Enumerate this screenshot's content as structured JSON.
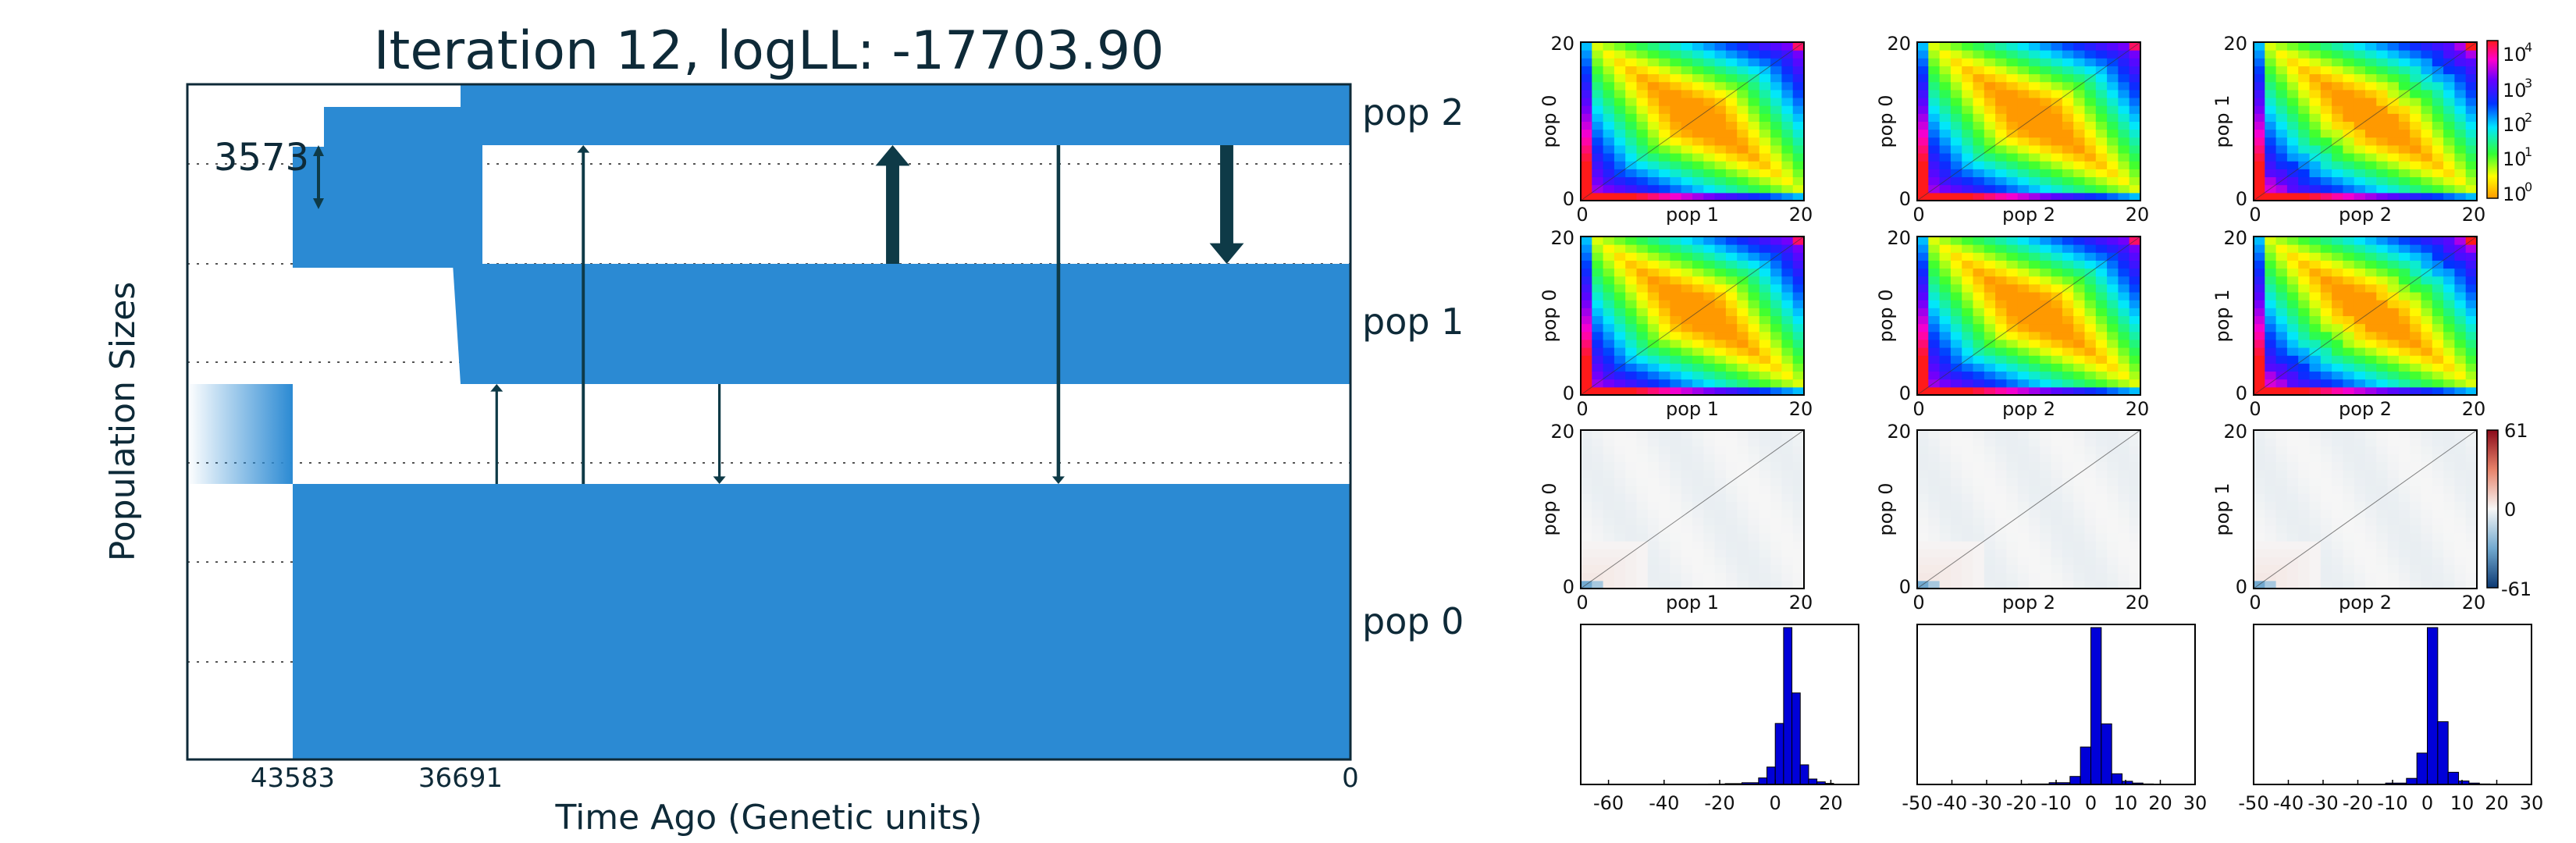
{
  "chart_data": [
    {
      "type": "demographic-model",
      "title": "Iteration 12, logLL:  -17703.90",
      "ylabel": "Population Sizes",
      "xlabel": "Time Ago (Genetic units)",
      "x_ticks": [
        "43583",
        "36691",
        "0"
      ],
      "x_range": [
        47000,
        0
      ],
      "size_scale_label": "3573",
      "populations": [
        {
          "name": "pop 2",
          "size_early": 1.6,
          "size_mid": 1.75,
          "size_recent": 1.05,
          "start_time": 43583
        },
        {
          "name": "pop 1",
          "size_early": 1.4,
          "size_recent": 1.45,
          "start_time": 43583
        },
        {
          "name": "pop 0",
          "size": 3.3,
          "ancestral_time": 43583
        }
      ],
      "migrations": [
        {
          "time": 34500,
          "from": "pop 0",
          "to": "pop 1",
          "rate": 0.25
        },
        {
          "time": 31000,
          "from": "pop 0",
          "to": "pop 2",
          "rate": 0.3
        },
        {
          "time": 25500,
          "from": "pop 1",
          "to": "pop 0",
          "rate": 0.25
        },
        {
          "time": 18500,
          "from": "pop 1",
          "to": "pop 2",
          "rate": 1.3
        },
        {
          "time": 11800,
          "from": "pop 2",
          "to": "pop 0",
          "rate": 0.35
        },
        {
          "time": 5000,
          "from": "pop 2",
          "to": "pop 1",
          "rate": 1.3
        }
      ],
      "colors": {
        "fill": "#2b8ad3",
        "arrow": "#0e3a47",
        "text": "#0e2a38"
      }
    },
    {
      "type": "heatmap",
      "name": "model 2D-SFS",
      "panels": [
        {
          "ylabel": "pop 0",
          "xlabel": "pop 1"
        },
        {
          "ylabel": "pop 0",
          "xlabel": "pop 2"
        },
        {
          "ylabel": "pop 1",
          "xlabel": "pop 2"
        }
      ],
      "x_ticks": [
        "0",
        "20"
      ],
      "y_ticks": [
        "0",
        "20"
      ],
      "colorbar": {
        "scale": "log",
        "ticks": [
          {
            "base": "10",
            "exp": "4"
          },
          {
            "base": "10",
            "exp": "3"
          },
          {
            "base": "10",
            "exp": "2"
          },
          {
            "base": "10",
            "exp": "1"
          },
          {
            "base": "10",
            "exp": "0"
          }
        ]
      }
    },
    {
      "type": "heatmap",
      "name": "data 2D-SFS",
      "panels": [
        {
          "ylabel": "pop 0",
          "xlabel": "pop 1"
        },
        {
          "ylabel": "pop 0",
          "xlabel": "pop 2"
        },
        {
          "ylabel": "pop 1",
          "xlabel": "pop 2"
        }
      ],
      "x_ticks": [
        "0",
        "20"
      ],
      "y_ticks": [
        "0",
        "20"
      ]
    },
    {
      "type": "heatmap",
      "name": "residuals",
      "panels": [
        {
          "ylabel": "pop 0",
          "xlabel": "pop 1"
        },
        {
          "ylabel": "pop 0",
          "xlabel": "pop 2"
        },
        {
          "ylabel": "pop 1",
          "xlabel": "pop 2"
        }
      ],
      "x_ticks": [
        "0",
        "20"
      ],
      "y_ticks": [
        "0",
        "20"
      ],
      "colorbar": {
        "ticks": [
          "61",
          "0",
          "-61"
        ],
        "range": [
          -61,
          61
        ]
      }
    },
    {
      "type": "bar",
      "name": "residual histograms",
      "panels": [
        {
          "x_ticks": [
            "-60",
            "-40",
            "-20",
            "0",
            "20"
          ],
          "x_range": [
            -70,
            30
          ],
          "bins": [
            -30,
            -24,
            -18,
            -12,
            -6,
            -3,
            0,
            3,
            6,
            9,
            12,
            15,
            18,
            21
          ],
          "counts": [
            1,
            2,
            4,
            8,
            30,
            80,
            280,
            720,
            420,
            90,
            25,
            12,
            5
          ]
        },
        {
          "x_ticks": [
            "-50",
            "-40",
            "-30",
            "-20",
            "-10",
            "0",
            "10",
            "20",
            "30"
          ],
          "x_range": [
            -50,
            30
          ],
          "bins": [
            -24,
            -18,
            -12,
            -6,
            -3,
            0,
            3,
            6,
            9,
            12,
            15,
            18,
            21
          ],
          "counts": [
            1,
            3,
            10,
            45,
            210,
            880,
            340,
            60,
            18,
            8,
            3,
            1
          ]
        },
        {
          "x_ticks": [
            "-50",
            "-40",
            "-30",
            "-20",
            "-10",
            "0",
            "10",
            "20",
            "30"
          ],
          "x_range": [
            -50,
            30
          ],
          "bins": [
            -24,
            -18,
            -12,
            -6,
            -3,
            0,
            3,
            6,
            9,
            12,
            15,
            18,
            21
          ],
          "counts": [
            1,
            2,
            8,
            35,
            180,
            900,
            360,
            70,
            20,
            8,
            3,
            1
          ]
        }
      ],
      "colors": {
        "bar": "#0000d8"
      }
    }
  ]
}
